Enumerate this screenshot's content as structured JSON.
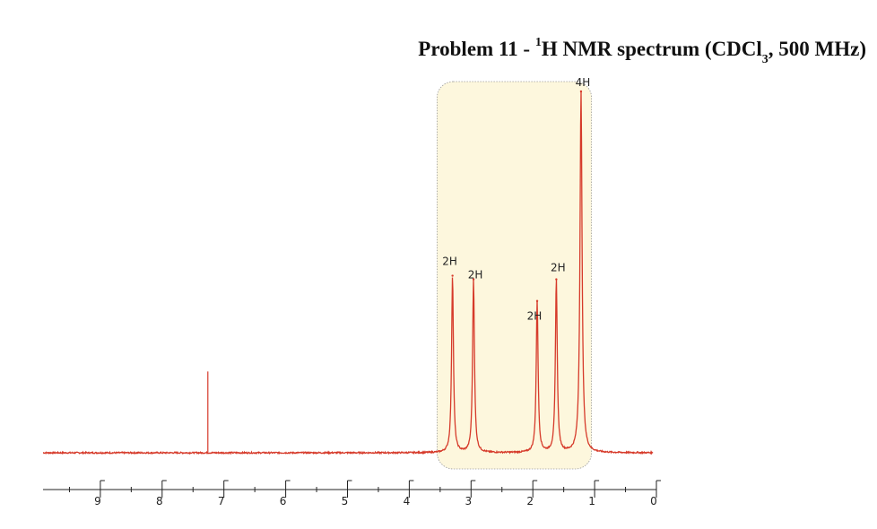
{
  "title": {
    "prefix": "Problem 11 - ",
    "superscript": "1",
    "main": "H NMR spectrum (CDCl",
    "subscript": "3",
    "suffix": ", 500 MHz)"
  },
  "colors": {
    "spectrum": "#d63a2a",
    "highlight_fill": "#fdf7dd",
    "highlight_border": "#9a9a9a",
    "axis": "#222222"
  },
  "chart_data": {
    "type": "line",
    "title": "Problem 11 - 1H NMR spectrum (CDCl3, 500 MHz)",
    "xlabel": "",
    "ylabel": "",
    "xlim": [
      10,
      0
    ],
    "x_reversed": true,
    "x_ticks": [
      9,
      8,
      7,
      6,
      5,
      4,
      3,
      2,
      1,
      0
    ],
    "highlight_region": [
      3.55,
      1.05
    ],
    "solvent_peak": {
      "shift": 7.26,
      "height": 0.225
    },
    "peaks": [
      {
        "shift": 3.3,
        "height": 0.49,
        "width": 0.018,
        "integration": "2H"
      },
      {
        "shift": 2.96,
        "height": 0.48,
        "width": 0.018,
        "integration": "2H"
      },
      {
        "shift": 1.93,
        "height": 0.42,
        "width": 0.018,
        "integration": "2H"
      },
      {
        "shift": 1.62,
        "height": 0.48,
        "width": 0.018,
        "integration": "2H"
      },
      {
        "shift": 1.22,
        "height": 1.0,
        "width": 0.02,
        "integration": "4H"
      }
    ]
  }
}
